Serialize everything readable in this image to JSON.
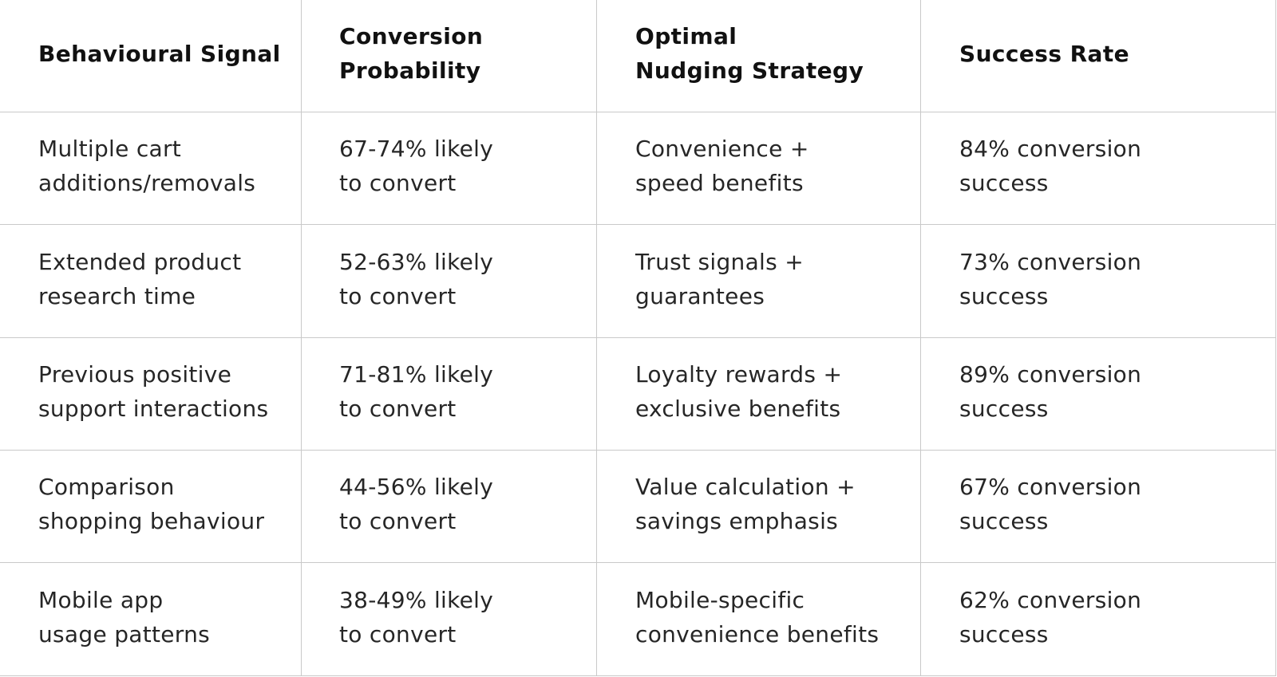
{
  "table": {
    "headers": [
      "Behavioural Signal",
      "Conversion\nProbability",
      "Optimal\nNudging Strategy",
      "Success Rate"
    ],
    "rows": [
      [
        "Multiple cart\nadditions/removals",
        "67-74% likely\nto convert",
        "Convenience +\nspeed benefits",
        "84% conversion\nsuccess"
      ],
      [
        "Extended product\nresearch time",
        "52-63% likely\nto convert",
        "Trust signals +\nguarantees",
        "73% conversion\nsuccess"
      ],
      [
        "Previous positive\nsupport interactions",
        "71-81% likely\nto convert",
        "Loyalty rewards +\nexclusive benefits",
        "89% conversion\nsuccess"
      ],
      [
        "Comparison\nshopping behaviour",
        "44-56% likely\nto convert",
        "Value calculation +\nsavings emphasis",
        "67% conversion\nsuccess"
      ],
      [
        "Mobile app\nusage patterns",
        "38-49% likely\nto convert",
        "Mobile-specific\nconvenience benefits",
        "62% conversion\nsuccess"
      ]
    ]
  },
  "colors": {
    "border": "#c9c9c9",
    "text": "#262626",
    "header_text": "#111111",
    "background": "#ffffff"
  }
}
